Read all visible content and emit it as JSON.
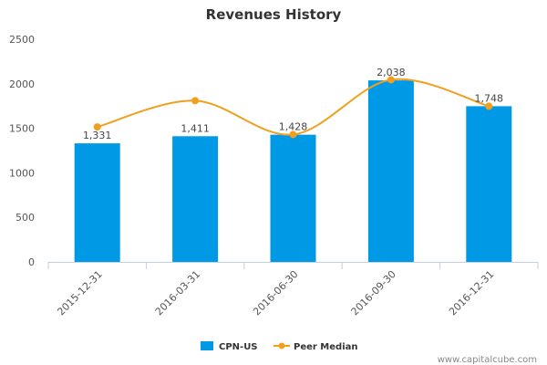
{
  "chart_data": {
    "type": "bar",
    "title": "Revenues History",
    "categories": [
      "2015-12-31",
      "2016-03-31",
      "2016-06-30",
      "2016-09-30",
      "2016-12-31"
    ],
    "ylim": [
      0,
      2500
    ],
    "yticks": [
      "0",
      "500",
      "1000",
      "1500",
      "2000",
      "2500"
    ],
    "series": [
      {
        "name": "CPN-US",
        "kind": "bar",
        "color": "#0099e6",
        "values": [
          1331,
          1411,
          1428,
          2038,
          1748
        ],
        "labels": [
          "1,331",
          "1,411",
          "1,428",
          "2,038",
          "1,748"
        ]
      },
      {
        "name": "Peer Median",
        "kind": "line",
        "color": "#f0a01e",
        "values": [
          1515,
          1810,
          1430,
          2045,
          1748
        ]
      }
    ],
    "grid": false,
    "legend": "bottom-center"
  },
  "footer": "www.capitalcube.com"
}
